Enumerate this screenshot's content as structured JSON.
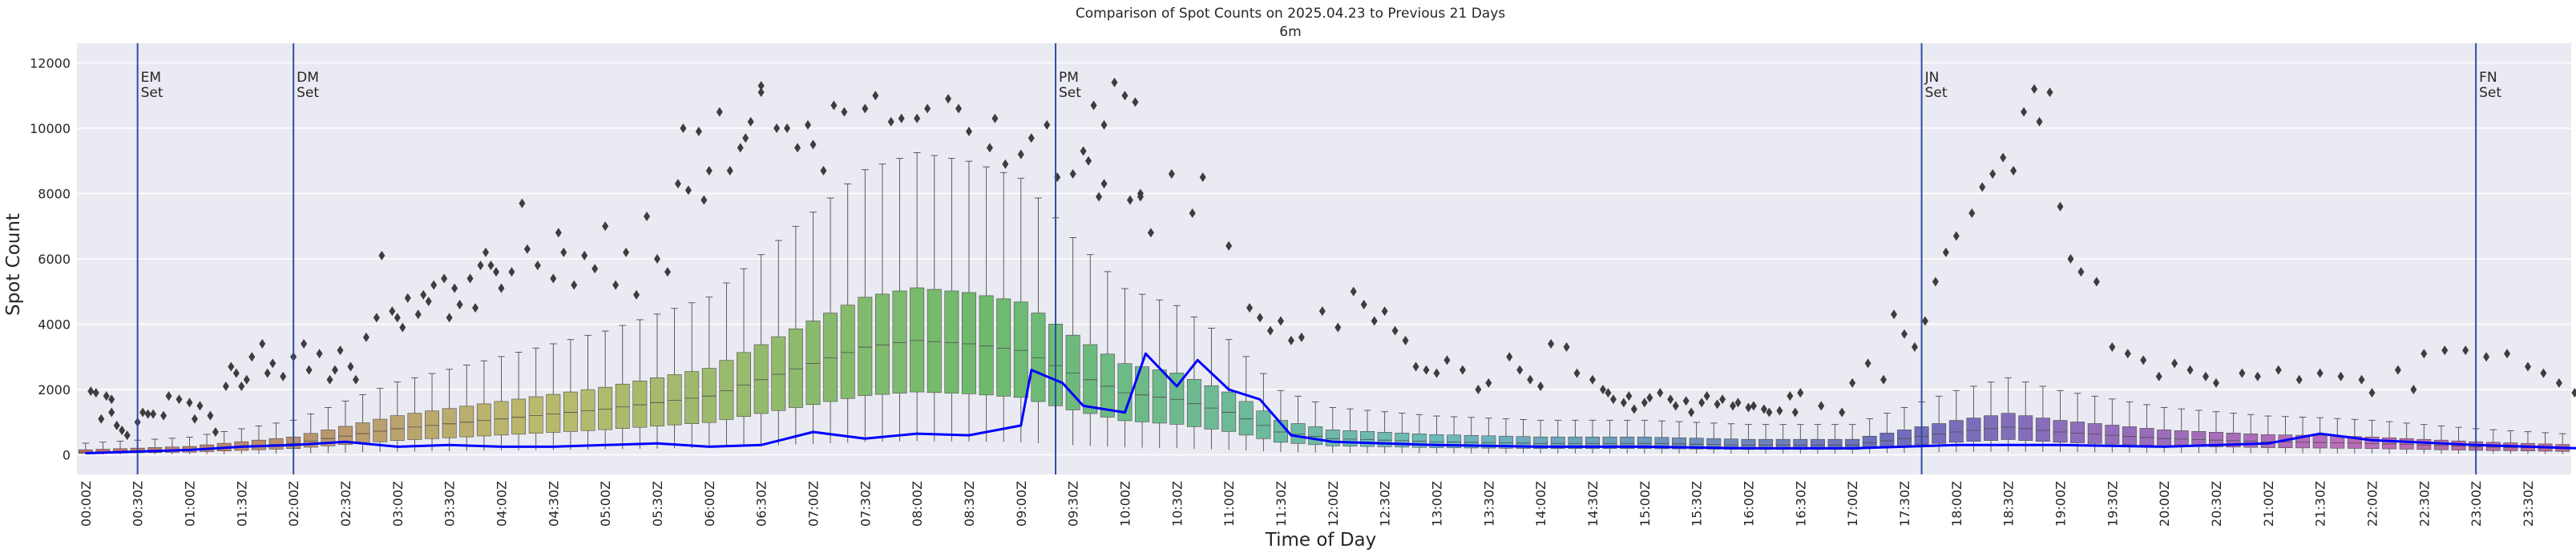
{
  "chart_data": {
    "type": "box",
    "title": "Comparison of Spot Counts on 2025.04.23 to Previous 21 Days",
    "subtitle": "6m",
    "xlabel": "Time of Day",
    "ylabel": "Spot Count",
    "ylim": [
      -600,
      12600
    ],
    "yticks": [
      0,
      2000,
      4000,
      6000,
      8000,
      10000,
      12000
    ],
    "bin_minutes": 10,
    "bins_per_day": 144,
    "xtick_labels": [
      "00:00Z",
      "00:30Z",
      "01:00Z",
      "01:30Z",
      "02:00Z",
      "02:30Z",
      "03:00Z",
      "03:30Z",
      "04:00Z",
      "04:30Z",
      "05:00Z",
      "05:30Z",
      "06:00Z",
      "06:30Z",
      "07:00Z",
      "07:30Z",
      "08:00Z",
      "08:30Z",
      "09:00Z",
      "09:30Z",
      "10:00Z",
      "10:30Z",
      "11:00Z",
      "11:30Z",
      "12:00Z",
      "12:30Z",
      "13:00Z",
      "13:30Z",
      "14:00Z",
      "14:30Z",
      "15:00Z",
      "15:30Z",
      "16:00Z",
      "16:30Z",
      "17:00Z",
      "17:30Z",
      "18:00Z",
      "18:30Z",
      "19:00Z",
      "19:30Z",
      "20:00Z",
      "20:30Z",
      "21:00Z",
      "21:30Z",
      "22:00Z",
      "22:30Z",
      "23:00Z",
      "23:30Z"
    ],
    "annotations": [
      {
        "line1": "EM",
        "line2": "Set",
        "bin": 3
      },
      {
        "line1": "DM",
        "line2": "Set",
        "bin": 12
      },
      {
        "line1": "PM",
        "line2": "Set",
        "bin": 56
      },
      {
        "line1": "JN",
        "line2": "Set",
        "bin": 106
      },
      {
        "line1": "FN",
        "line2": "Set",
        "bin": 138
      }
    ],
    "median_profile": {
      "hours": [
        0,
        1,
        2,
        3,
        4,
        5,
        6,
        7,
        7.5,
        8,
        8.5,
        9,
        9.5,
        10,
        10.5,
        11,
        11.5,
        12,
        13,
        14,
        15,
        16,
        17,
        17.5,
        18,
        18.5,
        19,
        19.5,
        20,
        21,
        21.5,
        22,
        23,
        24
      ],
      "values": [
        80,
        150,
        350,
        800,
        1100,
        1400,
        1800,
        2800,
        3300,
        3500,
        3400,
        3200,
        2500,
        1900,
        1700,
        1300,
        700,
        500,
        400,
        350,
        350,
        300,
        300,
        500,
        700,
        850,
        700,
        600,
        500,
        400,
        380,
        350,
        250,
        180
      ]
    },
    "today_series": {
      "name": "2025.04.23",
      "color": "#0000ff",
      "hours": [
        0,
        0.5,
        1,
        1.5,
        2,
        2.5,
        3,
        3.5,
        4,
        4.5,
        5,
        5.5,
        6,
        6.5,
        7,
        7.5,
        8,
        8.5,
        9,
        9.1,
        9.4,
        9.6,
        10,
        10.2,
        10.5,
        10.7,
        11,
        11.3,
        11.6,
        12,
        13,
        14,
        15,
        16,
        17,
        18,
        19,
        20,
        21,
        21.5,
        22,
        23,
        24
      ],
      "values": [
        50,
        100,
        150,
        250,
        300,
        400,
        250,
        300,
        250,
        250,
        300,
        350,
        250,
        300,
        700,
        500,
        650,
        600,
        900,
        2600,
        2200,
        1500,
        1300,
        3100,
        2100,
        2900,
        2000,
        1700,
        600,
        400,
        300,
        250,
        250,
        200,
        200,
        300,
        300,
        250,
        350,
        650,
        450,
        300,
        200
      ]
    },
    "outliers": [
      [
        0.1,
        1950
      ],
      [
        0.2,
        1900
      ],
      [
        0.4,
        1800
      ],
      [
        0.5,
        1700
      ],
      [
        0.5,
        1300
      ],
      [
        0.6,
        900
      ],
      [
        0.7,
        750
      ],
      [
        0.8,
        600
      ],
      [
        1.0,
        1000
      ],
      [
        1.2,
        1250
      ],
      [
        1.3,
        1250
      ],
      [
        1.5,
        1200
      ],
      [
        1.6,
        1800
      ],
      [
        1.8,
        1700
      ],
      [
        2.0,
        1600
      ],
      [
        2.1,
        1100
      ],
      [
        2.4,
        1200
      ],
      [
        2.5,
        700
      ],
      [
        2.7,
        2100
      ],
      [
        2.8,
        2700
      ],
      [
        2.9,
        2500
      ],
      [
        3.1,
        2300
      ],
      [
        3.2,
        3000
      ],
      [
        3.4,
        3400
      ],
      [
        3.6,
        2800
      ],
      [
        3.8,
        2400
      ],
      [
        4.2,
        3400
      ],
      [
        4.3,
        2600
      ],
      [
        4.5,
        3100
      ],
      [
        4.7,
        2300
      ],
      [
        4.8,
        2600
      ],
      [
        5.1,
        2700
      ],
      [
        5.2,
        2300
      ],
      [
        5.6,
        4200
      ],
      [
        5.7,
        6100
      ],
      [
        5.9,
        4400
      ],
      [
        6.1,
        3900
      ],
      [
        6.2,
        4800
      ],
      [
        6.4,
        4300
      ],
      [
        6.5,
        4900
      ],
      [
        6.7,
        5200
      ],
      [
        6.9,
        5400
      ],
      [
        7.0,
        4200
      ],
      [
        7.2,
        4600
      ],
      [
        7.4,
        5400
      ],
      [
        7.5,
        4500
      ],
      [
        7.6,
        5800
      ],
      [
        7.7,
        6200
      ],
      [
        7.8,
        5800
      ],
      [
        8.0,
        5100
      ],
      [
        8.2,
        5600
      ],
      [
        8.4,
        7700
      ],
      [
        8.7,
        5800
      ],
      [
        9.0,
        5400
      ],
      [
        9.2,
        6200
      ],
      [
        9.4,
        5200
      ],
      [
        9.6,
        6100
      ],
      [
        9.8,
        5700
      ],
      [
        10.0,
        7000
      ],
      [
        10.2,
        5200
      ],
      [
        10.4,
        6200
      ],
      [
        10.6,
        4900
      ],
      [
        10.8,
        7300
      ],
      [
        11.0,
        6000
      ],
      [
        11.2,
        5600
      ],
      [
        11.4,
        8300
      ],
      [
        11.5,
        10000
      ],
      [
        11.6,
        8100
      ],
      [
        11.8,
        9900
      ],
      [
        11.9,
        7800
      ],
      [
        12.0,
        8700
      ],
      [
        12.2,
        10500
      ],
      [
        12.4,
        8700
      ],
      [
        12.6,
        9400
      ],
      [
        12.7,
        9700
      ],
      [
        12.8,
        10200
      ],
      [
        13.0,
        11300
      ],
      [
        13.0,
        11100
      ],
      [
        13.3,
        10000
      ],
      [
        13.5,
        10000
      ],
      [
        13.7,
        9400
      ],
      [
        13.9,
        10100
      ],
      [
        14.0,
        9500
      ],
      [
        14.2,
        8700
      ],
      [
        14.4,
        10700
      ],
      [
        14.6,
        10500
      ],
      [
        15.0,
        10600
      ],
      [
        15.2,
        11000
      ],
      [
        15.5,
        10200
      ],
      [
        15.7,
        10300
      ],
      [
        16.0,
        10300
      ],
      [
        16.2,
        10600
      ],
      [
        16.6,
        10900
      ],
      [
        16.8,
        10600
      ],
      [
        17.0,
        9900
      ],
      [
        17.4,
        9400
      ],
      [
        17.5,
        10300
      ],
      [
        17.7,
        8900
      ],
      [
        18.0,
        9200
      ],
      [
        18.2,
        9700
      ],
      [
        18.5,
        10100
      ],
      [
        18.7,
        8500
      ],
      [
        19.0,
        8600
      ],
      [
        19.2,
        9300
      ],
      [
        19.4,
        10700
      ],
      [
        19.6,
        10100
      ],
      [
        19.8,
        11400
      ],
      [
        20.0,
        11000
      ],
      [
        20.2,
        10800
      ],
      [
        20.3,
        8000
      ],
      [
        20.5,
        6800
      ],
      [
        19.3,
        9000
      ],
      [
        19.6,
        8300
      ],
      [
        19.5,
        7900
      ],
      [
        20.1,
        7800
      ],
      [
        20.3,
        7900
      ],
      [
        20.9,
        8600
      ],
      [
        21.3,
        7400
      ],
      [
        21.5,
        8500
      ],
      [
        22.0,
        6400
      ],
      [
        22.4,
        4500
      ],
      [
        22.6,
        4200
      ],
      [
        22.8,
        3800
      ],
      [
        23.0,
        4100
      ],
      [
        23.2,
        3500
      ],
      [
        23.4,
        3600
      ],
      [
        23.8,
        4400
      ],
      [
        24.1,
        3900
      ],
      [
        24.4,
        5000
      ],
      [
        24.6,
        4600
      ],
      [
        24.8,
        4100
      ],
      [
        25.0,
        4400
      ],
      [
        25.2,
        3800
      ],
      [
        25.4,
        3500
      ],
      [
        25.6,
        2700
      ],
      [
        25.8,
        2600
      ],
      [
        26.0,
        2500
      ],
      [
        26.2,
        2900
      ],
      [
        26.5,
        2600
      ],
      [
        26.8,
        2000
      ],
      [
        27.0,
        2200
      ],
      [
        27.4,
        3000
      ],
      [
        27.6,
        2600
      ],
      [
        27.8,
        2300
      ],
      [
        28.0,
        2100
      ],
      [
        28.2,
        3400
      ],
      [
        28.5,
        3300
      ],
      [
        28.7,
        2500
      ],
      [
        29.0,
        2300
      ],
      [
        29.2,
        2000
      ],
      [
        29.4,
        1700
      ],
      [
        29.6,
        1600
      ],
      [
        29.8,
        1400
      ],
      [
        30.0,
        1600
      ],
      [
        30.3,
        1900
      ],
      [
        30.6,
        1500
      ],
      [
        30.9,
        1300
      ],
      [
        31.2,
        1800
      ],
      [
        31.5,
        1700
      ],
      [
        31.8,
        1600
      ],
      [
        32.1,
        1500
      ],
      [
        32.4,
        1300
      ],
      [
        32.8,
        1800
      ],
      [
        33.0,
        1900
      ],
      [
        33.4,
        1500
      ],
      [
        33.8,
        1300
      ],
      [
        34.0,
        2200
      ],
      [
        34.3,
        2800
      ],
      [
        34.6,
        2300
      ],
      [
        34.8,
        4300
      ],
      [
        35.0,
        3700
      ],
      [
        35.2,
        3300
      ],
      [
        35.4,
        4100
      ],
      [
        35.6,
        5300
      ],
      [
        35.8,
        6200
      ],
      [
        36.0,
        6700
      ],
      [
        36.3,
        7400
      ],
      [
        36.5,
        8200
      ],
      [
        36.7,
        8600
      ],
      [
        36.9,
        9100
      ],
      [
        37.1,
        8700
      ],
      [
        37.3,
        10500
      ],
      [
        37.5,
        11200
      ],
      [
        37.6,
        10200
      ],
      [
        37.8,
        11100
      ],
      [
        38.0,
        7600
      ],
      [
        38.2,
        6000
      ],
      [
        38.4,
        5600
      ],
      [
        38.7,
        5300
      ],
      [
        39.0,
        3300
      ],
      [
        39.3,
        3100
      ],
      [
        39.6,
        2900
      ],
      [
        39.9,
        2400
      ],
      [
        40.2,
        2800
      ],
      [
        40.5,
        2600
      ],
      [
        40.8,
        2400
      ],
      [
        41.0,
        2200
      ],
      [
        41.5,
        2500
      ],
      [
        41.8,
        2400
      ],
      [
        42.2,
        2600
      ],
      [
        42.6,
        2300
      ],
      [
        43.0,
        2500
      ],
      [
        43.4,
        2400
      ],
      [
        43.8,
        2300
      ],
      [
        44.0,
        1900
      ],
      [
        44.5,
        2600
      ],
      [
        44.8,
        2000
      ],
      [
        45.0,
        3100
      ],
      [
        45.4,
        3200
      ],
      [
        45.8,
        3200
      ],
      [
        46.2,
        3000
      ],
      [
        46.6,
        3100
      ],
      [
        47.0,
        2700
      ],
      [
        47.3,
        2500
      ],
      [
        47.6,
        2200
      ],
      [
        47.9,
        1900
      ],
      [
        0.3,
        1100
      ],
      [
        1.1,
        1300
      ],
      [
        2.2,
        1500
      ],
      [
        3.0,
        2100
      ],
      [
        3.5,
        2500
      ],
      [
        4.0,
        3000
      ],
      [
        4.9,
        3200
      ],
      [
        5.4,
        3600
      ],
      [
        6.0,
        4200
      ],
      [
        6.6,
        4700
      ],
      [
        7.1,
        5100
      ],
      [
        7.9,
        5600
      ],
      [
        8.5,
        6300
      ],
      [
        9.1,
        6800
      ],
      [
        29.3,
        1900
      ],
      [
        29.7,
        1800
      ],
      [
        30.1,
        1750
      ],
      [
        30.5,
        1700
      ],
      [
        30.8,
        1650
      ],
      [
        31.1,
        1600
      ],
      [
        31.4,
        1550
      ],
      [
        31.7,
        1500
      ],
      [
        32.0,
        1450
      ],
      [
        32.3,
        1400
      ],
      [
        32.6,
        1350
      ],
      [
        32.9,
        1300
      ]
    ]
  }
}
